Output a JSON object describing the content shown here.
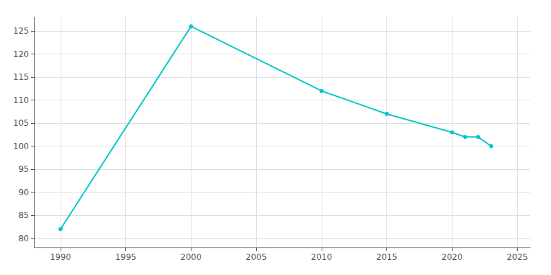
{
  "chart_data": {
    "type": "line",
    "x": [
      1990,
      2000,
      2010,
      2015,
      2020,
      2021,
      2022,
      2023
    ],
    "values": [
      82,
      126,
      112,
      107,
      103,
      102,
      102,
      100
    ],
    "color": "#00C8C8",
    "marker": "circle",
    "xlim": [
      1988,
      2026
    ],
    "ylim": [
      78,
      128
    ],
    "xticks": [
      1990,
      1995,
      2000,
      2005,
      2010,
      2015,
      2020,
      2025
    ],
    "yticks": [
      80,
      85,
      90,
      95,
      100,
      105,
      110,
      115,
      120,
      125
    ],
    "grid": true
  }
}
